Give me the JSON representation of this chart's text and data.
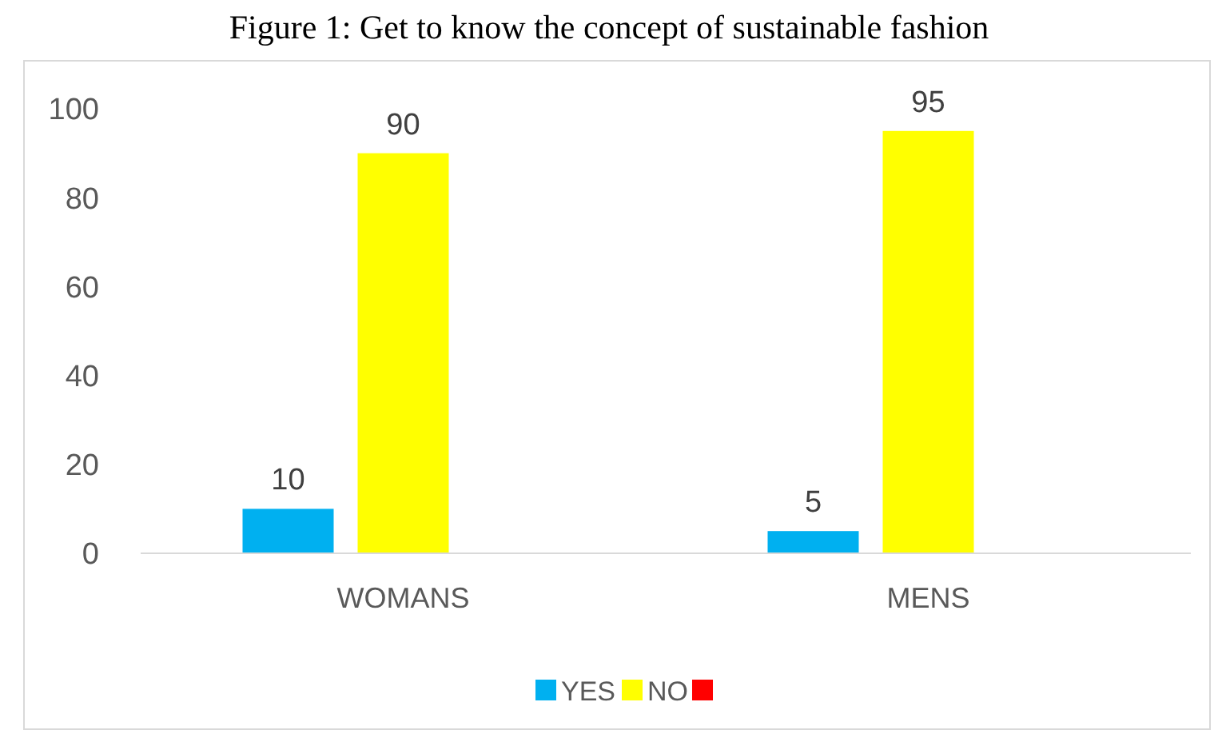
{
  "chart_data": {
    "type": "bar",
    "title": "Figure 1: Get to know the concept of sustainable fashion",
    "categories": [
      "WOMANS",
      "MENS"
    ],
    "series": [
      {
        "name": "YES",
        "color": "#00b0f0",
        "values": [
          10,
          5
        ],
        "value_labels": [
          "10",
          "5"
        ]
      },
      {
        "name": "NO",
        "color": "#ffff00",
        "values": [
          90,
          95
        ],
        "value_labels": [
          "90",
          "95"
        ]
      },
      {
        "color": "#ff0000",
        "values": [
          0,
          0
        ],
        "value_labels": [
          null,
          null
        ]
      }
    ],
    "ylim": [
      0,
      100
    ],
    "yticks": [
      0,
      20,
      40,
      60,
      80,
      100
    ],
    "grid": false,
    "legend": "bottom"
  }
}
